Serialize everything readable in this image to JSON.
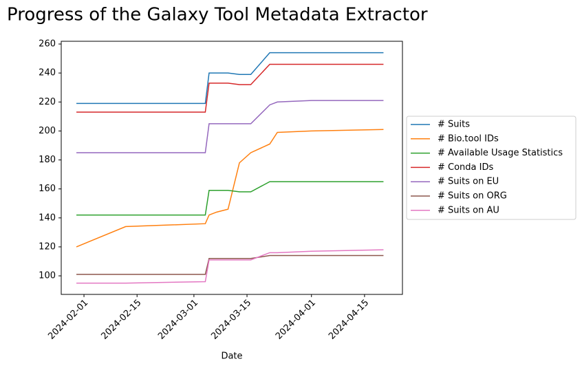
{
  "chart_data": {
    "type": "line",
    "title": "Progress of the Galaxy Tool Metadata Extractor",
    "x_label": "Date",
    "x": [
      "2024-01-30",
      "2024-02-12",
      "2024-03-04",
      "2024-03-05",
      "2024-03-07",
      "2024-03-10",
      "2024-03-13",
      "2024-03-16",
      "2024-03-21",
      "2024-03-23",
      "2024-04-01",
      "2024-04-20"
    ],
    "series": [
      {
        "name": "# Suits",
        "color": "#1f77b4",
        "values": [
          219,
          219,
          219,
          240,
          240,
          240,
          239,
          239,
          254,
          254,
          254,
          254
        ]
      },
      {
        "name": "# Bio.tool IDs",
        "color": "#ff7f0e",
        "values": [
          120,
          134,
          136,
          142,
          144,
          146,
          178,
          185,
          191,
          199,
          200,
          201
        ]
      },
      {
        "name": "# Available Usage Statistics",
        "color": "#2ca02c",
        "values": [
          142,
          142,
          142,
          159,
          159,
          159,
          158,
          158,
          165,
          165,
          165,
          165
        ]
      },
      {
        "name": "# Conda IDs",
        "color": "#d62728",
        "values": [
          213,
          213,
          213,
          233,
          233,
          233,
          232,
          232,
          246,
          246,
          246,
          246
        ]
      },
      {
        "name": "# Suits on EU",
        "color": "#9467bd",
        "values": [
          185,
          185,
          185,
          205,
          205,
          205,
          205,
          205,
          218,
          220,
          221,
          221
        ]
      },
      {
        "name": "# Suits on ORG",
        "color": "#8c564b",
        "values": [
          101,
          101,
          101,
          112,
          112,
          112,
          112,
          112,
          114,
          114,
          114,
          114
        ]
      },
      {
        "name": "# Suits on AU",
        "color": "#e377c2",
        "values": [
          95,
          95,
          96,
          111,
          111,
          111,
          111,
          111,
          116,
          116,
          117,
          118
        ]
      }
    ],
    "xlim": [
      "2024-01-26",
      "2024-04-25"
    ],
    "xticks": [
      "2024-02-01",
      "2024-02-15",
      "2024-03-01",
      "2024-03-15",
      "2024-04-01",
      "2024-04-15"
    ],
    "ylim": [
      87.2,
      261.9
    ],
    "yticks": [
      100,
      120,
      140,
      160,
      180,
      200,
      220,
      240,
      260
    ],
    "grid": false,
    "legend": "outside right"
  }
}
